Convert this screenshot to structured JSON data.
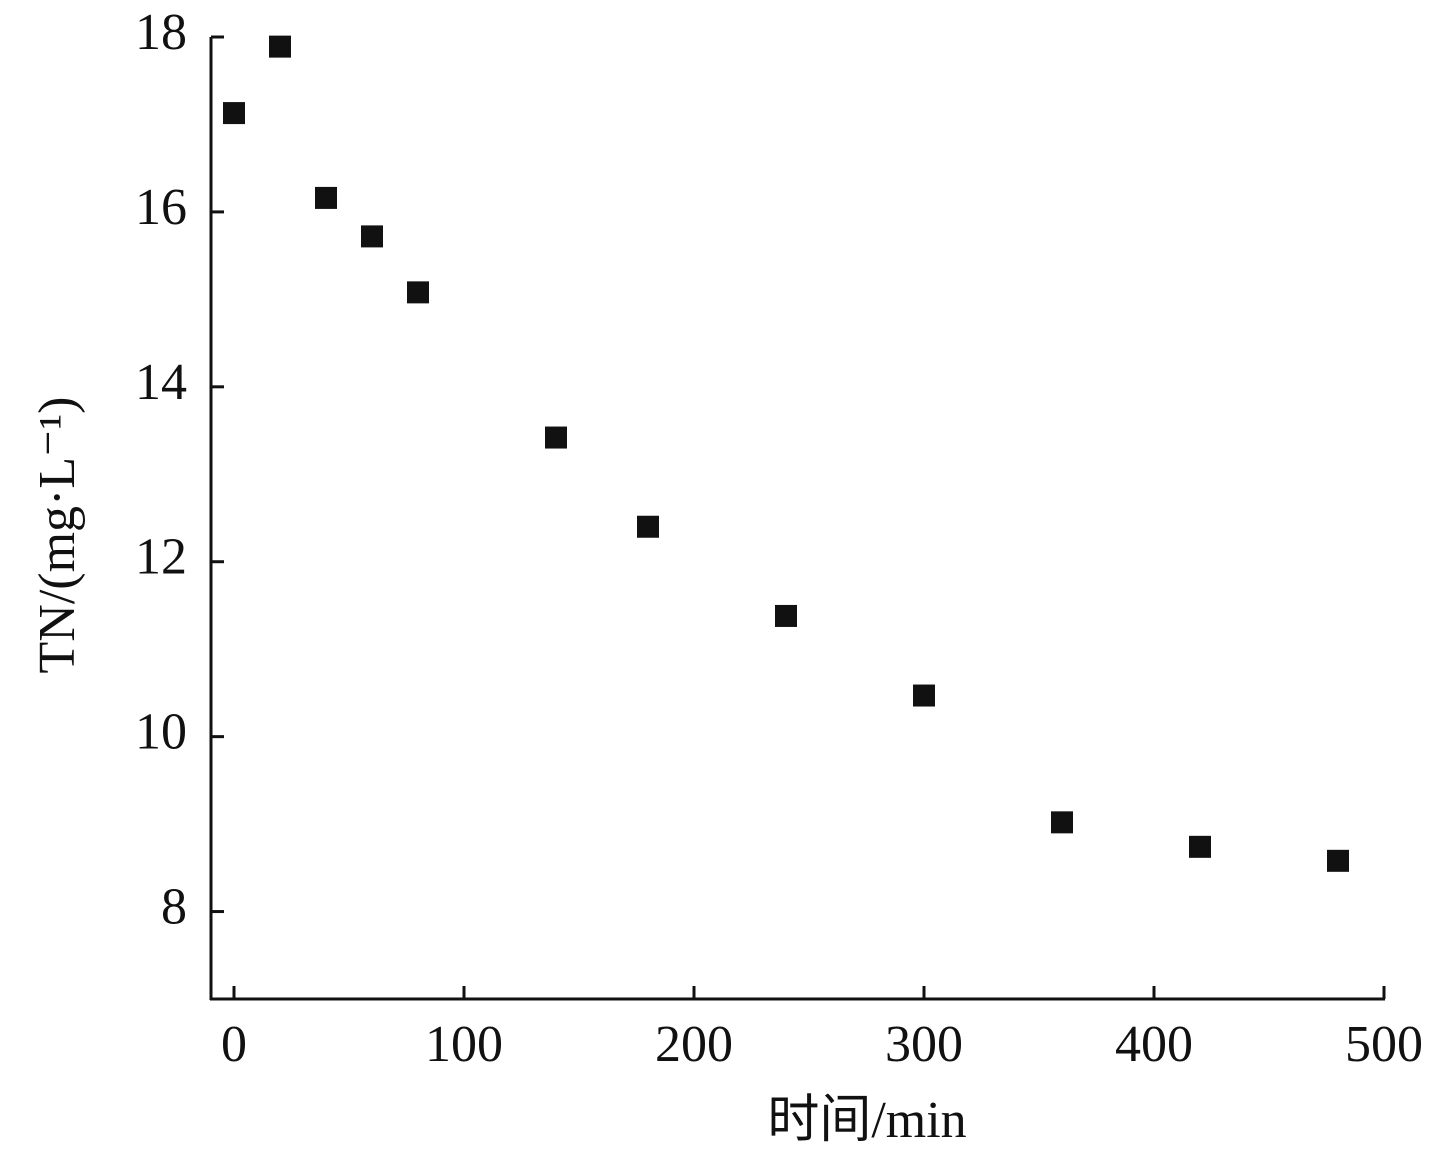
{
  "chart_data": {
    "type": "scatter",
    "x_label": "时间/min",
    "y_label": "TN/(mg·L⁻¹)",
    "x": [
      0,
      20,
      40,
      60,
      80,
      140,
      180,
      240,
      300,
      360,
      420,
      480
    ],
    "series": [
      {
        "color": "#111111",
        "values": [
          17.13,
          17.89,
          16.16,
          15.72,
          15.08,
          13.42,
          12.4,
          11.38,
          10.47,
          9.02,
          8.74,
          8.58
        ]
      }
    ],
    "xlim": [
      -10,
      500
    ],
    "xticks": [
      0,
      100,
      200,
      300,
      400,
      500
    ],
    "ylim": [
      7,
      18
    ],
    "yticks": [
      8,
      10,
      12,
      14,
      16,
      18
    ]
  }
}
